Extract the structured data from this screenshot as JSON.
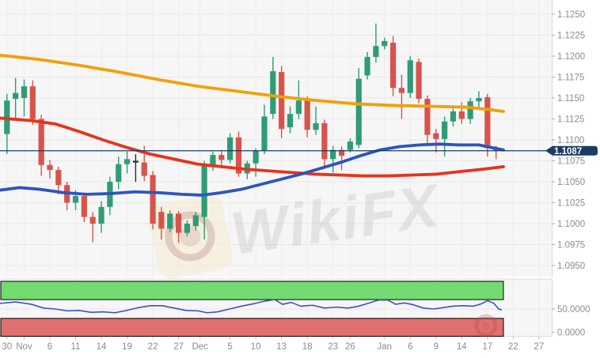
{
  "watermark": {
    "text": "WikiFX",
    "logo_icon": "wikifx-swirl-logo"
  },
  "price_axis": {
    "labels": [
      "1.1250",
      "1.1225",
      "1.1200",
      "1.1175",
      "1.1150",
      "1.1125",
      "1.1100",
      "1.1075",
      "1.1050",
      "1.1025",
      "1.1000",
      "1.0975",
      "1.0950"
    ]
  },
  "rsi_axis": {
    "labels": [
      {
        "value": 50,
        "text": "50.0000"
      },
      {
        "value": 0,
        "text": "0.0000"
      }
    ]
  },
  "time_axis": {
    "ticks": [
      {
        "label": "30",
        "i": 0
      },
      {
        "label": "Nov",
        "i": 2
      },
      {
        "label": "6",
        "i": 5
      },
      {
        "label": "11",
        "i": 8
      },
      {
        "label": "14",
        "i": 11
      },
      {
        "label": "19",
        "i": 14
      },
      {
        "label": "22",
        "i": 17
      },
      {
        "label": "27",
        "i": 20
      },
      {
        "label": "Dec",
        "i": 22.5
      },
      {
        "label": "5",
        "i": 26
      },
      {
        "label": "10",
        "i": 29
      },
      {
        "label": "13",
        "i": 32
      },
      {
        "label": "18",
        "i": 35
      },
      {
        "label": "23",
        "i": 38
      },
      {
        "label": "26",
        "i": 40
      },
      {
        "label": "Jan",
        "i": 44
      },
      {
        "label": "6",
        "i": 47
      },
      {
        "label": "9",
        "i": 50
      },
      {
        "label": "14",
        "i": 53
      },
      {
        "label": "17",
        "i": 56
      },
      {
        "label": "22",
        "i": 59
      },
      {
        "label": "27",
        "i": 62
      }
    ]
  },
  "colors": {
    "up": "#2f9c76",
    "down": "#d7544b",
    "doji_dark": "#2b2b2b",
    "ma_orange": "#f2a007",
    "ma_red": "#e8331c",
    "ma_blue": "#2b55c0",
    "price_line": "#1b3c66",
    "badge_bg": "#1e3c63",
    "badge_text": "#ffffff",
    "rsi_line": "#3a52c4",
    "band_green": "#74da72",
    "band_red": "#e06f6f",
    "band_border": "#000000",
    "grid": "#e8e8e8",
    "axis_text": "#8c8c8c",
    "plot_bg": "#f6f6f6",
    "panel_border": "#d9d9d9"
  },
  "chart_data": {
    "type": "candlestick",
    "title": "",
    "ylabel": "price",
    "y_range": [
      1.095,
      1.1267
    ],
    "grid": true,
    "price_line": {
      "value": 1.1087,
      "label": "1.1087"
    },
    "candles": [
      {
        "d": "Oct 30",
        "o": 1.1107,
        "h": 1.1155,
        "l": 1.1083,
        "c": 1.1147
      },
      {
        "d": "Oct 31",
        "o": 1.1149,
        "h": 1.1174,
        "l": 1.1125,
        "c": 1.1156
      },
      {
        "d": "Nov 1",
        "o": 1.115,
        "h": 1.1172,
        "l": 1.1128,
        "c": 1.1164
      },
      {
        "d": "Nov 4",
        "o": 1.1164,
        "h": 1.1171,
        "l": 1.1118,
        "c": 1.1125
      },
      {
        "d": "Nov 5",
        "o": 1.1125,
        "h": 1.113,
        "l": 1.1057,
        "c": 1.107
      },
      {
        "d": "Nov 6",
        "o": 1.107,
        "h": 1.1076,
        "l": 1.1054,
        "c": 1.1064
      },
      {
        "d": "Nov 7",
        "o": 1.1064,
        "h": 1.1068,
        "l": 1.1035,
        "c": 1.1046
      },
      {
        "d": "Nov 8",
        "o": 1.1046,
        "h": 1.105,
        "l": 1.1016,
        "c": 1.1025
      },
      {
        "d": "Nov 11",
        "o": 1.1025,
        "h": 1.104,
        "l": 1.1016,
        "c": 1.1033
      },
      {
        "d": "Nov 12",
        "o": 1.1033,
        "h": 1.1036,
        "l": 1.1002,
        "c": 1.1008
      },
      {
        "d": "Nov 13",
        "o": 1.1008,
        "h": 1.1014,
        "l": 1.0978,
        "c": 1.1
      },
      {
        "d": "Nov 14",
        "o": 1.1,
        "h": 1.1027,
        "l": 1.0989,
        "c": 1.102
      },
      {
        "d": "Nov 15",
        "o": 1.102,
        "h": 1.1056,
        "l": 1.101,
        "c": 1.105
      },
      {
        "d": "Nov 18",
        "o": 1.105,
        "h": 1.108,
        "l": 1.1041,
        "c": 1.1071
      },
      {
        "d": "Nov 19",
        "o": 1.1071,
        "h": 1.1086,
        "l": 1.106,
        "c": 1.1077
      },
      {
        "d": "Nov 20",
        "o": 1.1075,
        "h": 1.1083,
        "l": 1.105,
        "c": 1.1073,
        "dk": 1
      },
      {
        "d": "Nov 21",
        "o": 1.1073,
        "h": 1.1093,
        "l": 1.1051,
        "c": 1.1057
      },
      {
        "d": "Nov 22",
        "o": 1.1058,
        "h": 1.1063,
        "l": 1.0993,
        "c": 1.1
      },
      {
        "d": "Nov 25",
        "o": 1.1014,
        "h": 1.102,
        "l": 1.0981,
        "c": 1.0994
      },
      {
        "d": "Nov 26",
        "o": 1.0994,
        "h": 1.1016,
        "l": 1.099,
        "c": 1.1012
      },
      {
        "d": "Nov 27",
        "o": 1.1012,
        "h": 1.1015,
        "l": 1.0977,
        "c": 1.0989
      },
      {
        "d": "Nov 28",
        "o": 1.0989,
        "h": 1.1004,
        "l": 1.0985,
        "c": 1.1
      },
      {
        "d": "Nov 29",
        "o": 1.0997,
        "h": 1.1014,
        "l": 1.0992,
        "c": 1.101
      },
      {
        "d": "Dec 2",
        "o": 1.1008,
        "h": 1.1075,
        "l": 1.0981,
        "c": 1.107
      },
      {
        "d": "Dec 3",
        "o": 1.107,
        "h": 1.1086,
        "l": 1.1063,
        "c": 1.1082
      },
      {
        "d": "Dec 4",
        "o": 1.1082,
        "h": 1.1088,
        "l": 1.1066,
        "c": 1.1076
      },
      {
        "d": "Dec 5",
        "o": 1.1076,
        "h": 1.1108,
        "l": 1.1072,
        "c": 1.1103
      },
      {
        "d": "Dec 6",
        "o": 1.1103,
        "h": 1.111,
        "l": 1.1056,
        "c": 1.106
      },
      {
        "d": "Dec 9",
        "o": 1.106,
        "h": 1.1075,
        "l": 1.1053,
        "c": 1.1072
      },
      {
        "d": "Dec 10",
        "o": 1.1072,
        "h": 1.109,
        "l": 1.1056,
        "c": 1.1087
      },
      {
        "d": "Dec 11",
        "o": 1.1087,
        "h": 1.1142,
        "l": 1.1083,
        "c": 1.1128
      },
      {
        "d": "Dec 12",
        "o": 1.1131,
        "h": 1.1199,
        "l": 1.1125,
        "c": 1.1182
      },
      {
        "d": "Dec 13",
        "o": 1.1181,
        "h": 1.1188,
        "l": 1.1102,
        "c": 1.1113
      },
      {
        "d": "Dec 16",
        "o": 1.1115,
        "h": 1.114,
        "l": 1.1108,
        "c": 1.1131
      },
      {
        "d": "Dec 17",
        "o": 1.1131,
        "h": 1.1171,
        "l": 1.1125,
        "c": 1.1147
      },
      {
        "d": "Dec 18",
        "o": 1.1147,
        "h": 1.1152,
        "l": 1.1103,
        "c": 1.1112
      },
      {
        "d": "Dec 19",
        "o": 1.1112,
        "h": 1.114,
        "l": 1.1106,
        "c": 1.112
      },
      {
        "d": "Dec 20",
        "o": 1.112,
        "h": 1.1124,
        "l": 1.1066,
        "c": 1.1077
      },
      {
        "d": "Dec 23",
        "o": 1.1077,
        "h": 1.1093,
        "l": 1.1061,
        "c": 1.1088
      },
      {
        "d": "Dec 24",
        "o": 1.1088,
        "h": 1.1092,
        "l": 1.1064,
        "c": 1.1081
      },
      {
        "d": "Dec 26",
        "o": 1.1088,
        "h": 1.1102,
        "l": 1.1085,
        "c": 1.1098
      },
      {
        "d": "Dec 27",
        "o": 1.1094,
        "h": 1.1186,
        "l": 1.109,
        "c": 1.1173
      },
      {
        "d": "Dec 30",
        "o": 1.1177,
        "h": 1.1205,
        "l": 1.1172,
        "c": 1.1199
      },
      {
        "d": "Dec 31",
        "o": 1.1199,
        "h": 1.1239,
        "l": 1.1192,
        "c": 1.1212
      },
      {
        "d": "Jan 1",
        "o": 1.1212,
        "h": 1.1222,
        "l": 1.1208,
        "c": 1.1218
      },
      {
        "d": "Jan 2",
        "o": 1.1216,
        "h": 1.1224,
        "l": 1.1152,
        "c": 1.1162
      },
      {
        "d": "Jan 3",
        "o": 1.1162,
        "h": 1.1178,
        "l": 1.1125,
        "c": 1.1156
      },
      {
        "d": "Jan 6",
        "o": 1.1156,
        "h": 1.12,
        "l": 1.115,
        "c": 1.1195
      },
      {
        "d": "Jan 7",
        "o": 1.1193,
        "h": 1.1197,
        "l": 1.1144,
        "c": 1.1149
      },
      {
        "d": "Jan 8",
        "o": 1.1149,
        "h": 1.1153,
        "l": 1.1096,
        "c": 1.1106
      },
      {
        "d": "Jan 9",
        "o": 1.1108,
        "h": 1.1113,
        "l": 1.1085,
        "c": 1.1101
      },
      {
        "d": "Jan 10",
        "o": 1.1101,
        "h": 1.1128,
        "l": 1.108,
        "c": 1.1122
      },
      {
        "d": "Jan 13",
        "o": 1.1122,
        "h": 1.1139,
        "l": 1.1116,
        "c": 1.1134
      },
      {
        "d": "Jan 14",
        "o": 1.1134,
        "h": 1.1145,
        "l": 1.1119,
        "c": 1.1125
      },
      {
        "d": "Jan 15",
        "o": 1.1125,
        "h": 1.115,
        "l": 1.1119,
        "c": 1.1146
      },
      {
        "d": "Jan 16",
        "o": 1.1146,
        "h": 1.1158,
        "l": 1.1138,
        "c": 1.115
      },
      {
        "d": "Jan 17",
        "o": 1.1151,
        "h": 1.1155,
        "l": 1.108,
        "c": 1.109
      },
      {
        "d": "Jan 20",
        "o": 1.109,
        "h": 1.1093,
        "l": 1.1077,
        "c": 1.1087
      }
    ],
    "ma_lines": [
      {
        "name": "ma-orange",
        "color_key": "ma_orange",
        "points": [
          [
            0,
            1.1201
          ],
          [
            50,
            1.1196
          ],
          [
            100,
            1.1189
          ],
          [
            150,
            1.1181
          ],
          [
            200,
            1.1172
          ],
          [
            250,
            1.1164
          ],
          [
            300,
            1.1158
          ],
          [
            350,
            1.1152
          ],
          [
            400,
            1.1147
          ],
          [
            450,
            1.1143
          ],
          [
            500,
            1.1141
          ],
          [
            550,
            1.114
          ],
          [
            590,
            1.1139
          ],
          [
            620,
            1.1136
          ],
          [
            636,
            1.1134
          ]
        ]
      },
      {
        "name": "ma-red",
        "color_key": "ma_red",
        "points": [
          [
            0,
            1.1126
          ],
          [
            40,
            1.1123
          ],
          [
            70,
            1.1119
          ],
          [
            100,
            1.111
          ],
          [
            130,
            1.11
          ],
          [
            160,
            1.1091
          ],
          [
            190,
            1.1083
          ],
          [
            220,
            1.1077
          ],
          [
            250,
            1.1071
          ],
          [
            280,
            1.1068
          ],
          [
            310,
            1.1065
          ],
          [
            340,
            1.1063
          ],
          [
            370,
            1.1061
          ],
          [
            400,
            1.1059
          ],
          [
            430,
            1.1058
          ],
          [
            460,
            1.1057
          ],
          [
            490,
            1.1057
          ],
          [
            520,
            1.1058
          ],
          [
            550,
            1.1059
          ],
          [
            580,
            1.1062
          ],
          [
            610,
            1.1065
          ],
          [
            636,
            1.1068
          ]
        ]
      },
      {
        "name": "ma-blue",
        "color_key": "ma_blue",
        "points": [
          [
            0,
            1.104
          ],
          [
            25,
            1.1043
          ],
          [
            50,
            1.1041
          ],
          [
            80,
            1.1037
          ],
          [
            110,
            1.1035
          ],
          [
            140,
            1.1036
          ],
          [
            170,
            1.1038
          ],
          [
            200,
            1.1037
          ],
          [
            230,
            1.1035
          ],
          [
            255,
            1.1034
          ],
          [
            280,
            1.1037
          ],
          [
            305,
            1.1041
          ],
          [
            330,
            1.1047
          ],
          [
            355,
            1.1053
          ],
          [
            380,
            1.1059
          ],
          [
            405,
            1.1066
          ],
          [
            430,
            1.1073
          ],
          [
            455,
            1.1081
          ],
          [
            480,
            1.1088
          ],
          [
            505,
            1.1092
          ],
          [
            530,
            1.1094
          ],
          [
            555,
            1.1095
          ],
          [
            580,
            1.1094
          ],
          [
            605,
            1.1094
          ],
          [
            620,
            1.1091
          ],
          [
            636,
            1.1088
          ]
        ]
      }
    ],
    "rsi": {
      "overbought_zone": [
        70,
        100
      ],
      "oversold_zone": [
        0,
        30
      ],
      "points": [
        [
          0,
          62
        ],
        [
          20,
          65
        ],
        [
          40,
          60
        ],
        [
          55,
          52
        ],
        [
          70,
          50
        ],
        [
          85,
          46
        ],
        [
          100,
          47
        ],
        [
          115,
          43
        ],
        [
          130,
          44
        ],
        [
          145,
          42
        ],
        [
          160,
          47
        ],
        [
          175,
          53
        ],
        [
          190,
          57
        ],
        [
          205,
          57
        ],
        [
          220,
          52
        ],
        [
          235,
          47
        ],
        [
          250,
          46
        ],
        [
          262,
          42
        ],
        [
          275,
          44
        ],
        [
          290,
          50
        ],
        [
          305,
          56
        ],
        [
          320,
          61
        ],
        [
          335,
          67
        ],
        [
          347,
          70
        ],
        [
          357,
          60
        ],
        [
          368,
          64
        ],
        [
          380,
          56
        ],
        [
          395,
          58
        ],
        [
          410,
          52
        ],
        [
          425,
          54
        ],
        [
          440,
          52
        ],
        [
          453,
          56
        ],
        [
          465,
          62
        ],
        [
          478,
          69
        ],
        [
          490,
          69
        ],
        [
          500,
          60
        ],
        [
          510,
          63
        ],
        [
          520,
          60
        ],
        [
          535,
          52
        ],
        [
          548,
          50
        ],
        [
          560,
          53
        ],
        [
          572,
          56
        ],
        [
          585,
          57
        ],
        [
          598,
          56
        ],
        [
          608,
          61
        ],
        [
          616,
          68
        ],
        [
          624,
          62
        ],
        [
          630,
          50
        ],
        [
          634,
          48
        ]
      ]
    }
  }
}
